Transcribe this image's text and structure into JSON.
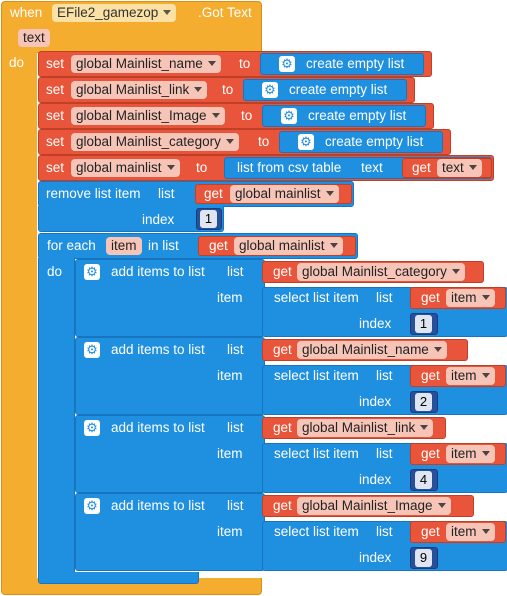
{
  "event": {
    "when_label": "when",
    "component": "EFile2_gamezop",
    "event_name": ".Got Text",
    "param": "text",
    "do_label": "do"
  },
  "set_blocks": [
    {
      "set_label": "set",
      "var": "global Mainlist_name",
      "to_label": "to",
      "value": "create empty list"
    },
    {
      "set_label": "set",
      "var": "global Mainlist_link",
      "to_label": "to",
      "value": "create empty list"
    },
    {
      "set_label": "set",
      "var": "global Mainlist_Image",
      "to_label": "to",
      "value": "create empty list"
    },
    {
      "set_label": "set",
      "var": "global Mainlist_category",
      "to_label": "to",
      "value": "create empty list"
    }
  ],
  "set_mainlist": {
    "set_label": "set",
    "var": "global mainlist",
    "to_label": "to",
    "func": "list from csv table",
    "arg_label": "text",
    "get_label": "get",
    "get_var": "text"
  },
  "remove_block": {
    "label": "remove list item",
    "list_label": "list",
    "get_label": "get",
    "get_var": "global mainlist",
    "index_label": "index",
    "index_value": "1"
  },
  "for_each": {
    "label": "for each",
    "var": "item",
    "in_list_label": "in list",
    "get_label": "get",
    "get_var": "global mainlist",
    "do_label": "do"
  },
  "add_blocks": [
    {
      "label": "add items to list",
      "list_label": "list",
      "get_label": "get",
      "target": "global Mainlist_category",
      "item_label": "item",
      "select_label": "select list item",
      "select_list_label": "list",
      "get_item_label": "get",
      "get_item_var": "item",
      "index_label": "index",
      "index_value": "1"
    },
    {
      "label": "add items to list",
      "list_label": "list",
      "get_label": "get",
      "target": "global Mainlist_name",
      "item_label": "item",
      "select_label": "select list item",
      "select_list_label": "list",
      "get_item_label": "get",
      "get_item_var": "item",
      "index_label": "index",
      "index_value": "2"
    },
    {
      "label": "add items to list",
      "list_label": "list",
      "get_label": "get",
      "target": "global Mainlist_link",
      "item_label": "item",
      "select_label": "select list item",
      "select_list_label": "list",
      "get_item_label": "get",
      "get_item_var": "item",
      "index_label": "index",
      "index_value": "4"
    },
    {
      "label": "add items to list",
      "list_label": "list",
      "get_label": "get",
      "target": "global Mainlist_Image",
      "item_label": "item",
      "select_label": "select list item",
      "select_list_label": "list",
      "get_item_label": "get",
      "get_item_var": "item",
      "index_label": "index",
      "index_value": "9"
    }
  ],
  "icons": {
    "mutator": "gear-icon"
  },
  "colors": {
    "event": "#f4ad2e",
    "variable": "#e8553a",
    "list": "#1f8fe0",
    "math": "#26509c"
  }
}
